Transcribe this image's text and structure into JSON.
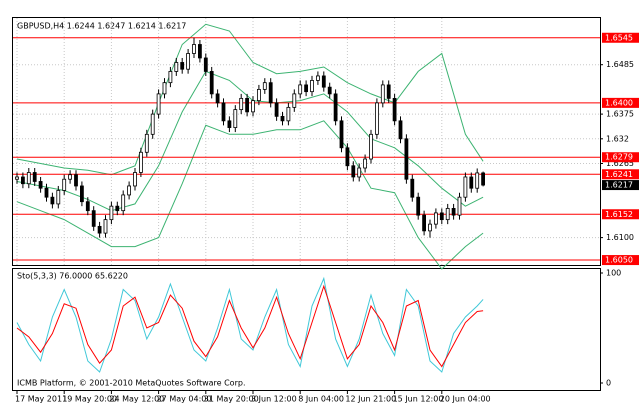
{
  "chart_data": [
    {
      "type": "candlestick",
      "title": "GBPUSD,H4  1.6244 1.6247 1.6214 1.6217",
      "categories": [
        "17 May 2011",
        null,
        null,
        null,
        null,
        null,
        null,
        null,
        "19 May 20:00",
        null,
        null,
        null,
        null,
        null,
        null,
        null,
        "24 May 12:00",
        null,
        null,
        null,
        null,
        null,
        null,
        null,
        "27 May 04:00",
        null,
        null,
        null,
        null,
        null,
        null,
        null,
        "31 May 20:00",
        null,
        null,
        null,
        null,
        null,
        null,
        null,
        "3 Jun 12:00",
        null,
        null,
        null,
        null,
        null,
        null,
        null,
        "8 Jun 04:00",
        null,
        null,
        null,
        null,
        null,
        null,
        null,
        "12 Jun 21:00",
        null,
        null,
        null,
        null,
        null,
        null,
        null,
        "15 Jun 12:00",
        null,
        null,
        null,
        null,
        null,
        null,
        null,
        "20 Jun 04:00",
        null,
        null,
        null,
        null,
        null,
        null,
        null
      ],
      "open": [
        1.623,
        1.6235,
        1.622,
        1.6245,
        1.6225,
        1.621,
        1.619,
        1.6175,
        1.6205,
        1.623,
        1.624,
        1.6215,
        1.618,
        1.616,
        1.6125,
        1.611,
        1.614,
        1.617,
        1.616,
        1.6195,
        1.6215,
        1.6245,
        1.629,
        1.633,
        1.6375,
        1.642,
        1.6445,
        1.647,
        1.649,
        1.6475,
        1.651,
        1.653,
        1.65,
        1.647,
        1.642,
        1.64,
        1.636,
        1.6345,
        1.6385,
        1.641,
        1.638,
        1.6405,
        1.643,
        1.6445,
        1.64,
        1.637,
        1.636,
        1.639,
        1.642,
        1.644,
        1.6425,
        1.645,
        1.646,
        1.6435,
        1.642,
        1.636,
        1.63,
        1.626,
        1.6235,
        1.6255,
        1.6275,
        1.633,
        1.64,
        1.644,
        1.641,
        1.636,
        1.632,
        1.623,
        1.619,
        1.615,
        1.6115,
        1.613,
        1.6155,
        1.614,
        1.6165,
        1.615,
        1.619,
        1.6235,
        1.621,
        1.6244
      ],
      "high": [
        1.6245,
        1.6245,
        1.6255,
        1.6255,
        1.6235,
        1.622,
        1.62,
        1.6215,
        1.624,
        1.625,
        1.625,
        1.6225,
        1.619,
        1.617,
        1.6135,
        1.615,
        1.618,
        1.618,
        1.6205,
        1.6225,
        1.6255,
        1.63,
        1.634,
        1.6385,
        1.643,
        1.6455,
        1.648,
        1.65,
        1.65,
        1.652,
        1.6545,
        1.654,
        1.651,
        1.648,
        1.643,
        1.641,
        1.637,
        1.6395,
        1.642,
        1.642,
        1.6415,
        1.644,
        1.6455,
        1.6455,
        1.641,
        1.638,
        1.64,
        1.643,
        1.645,
        1.645,
        1.646,
        1.647,
        1.647,
        1.6445,
        1.643,
        1.637,
        1.631,
        1.627,
        1.6265,
        1.6285,
        1.634,
        1.641,
        1.645,
        1.645,
        1.642,
        1.637,
        1.633,
        1.624,
        1.62,
        1.616,
        1.614,
        1.6165,
        1.6165,
        1.6175,
        1.6175,
        1.62,
        1.6245,
        1.6245,
        1.6254,
        1.6247
      ],
      "low": [
        1.622,
        1.621,
        1.621,
        1.6215,
        1.62,
        1.618,
        1.6165,
        1.6165,
        1.6195,
        1.622,
        1.6205,
        1.617,
        1.615,
        1.6115,
        1.61,
        1.61,
        1.613,
        1.615,
        1.615,
        1.6185,
        1.6205,
        1.6235,
        1.628,
        1.632,
        1.6365,
        1.641,
        1.6435,
        1.646,
        1.6465,
        1.6465,
        1.65,
        1.649,
        1.646,
        1.641,
        1.639,
        1.635,
        1.6335,
        1.6335,
        1.6375,
        1.637,
        1.637,
        1.6395,
        1.642,
        1.639,
        1.636,
        1.635,
        1.635,
        1.638,
        1.641,
        1.6415,
        1.6415,
        1.644,
        1.6425,
        1.641,
        1.635,
        1.629,
        1.625,
        1.6225,
        1.6225,
        1.6245,
        1.6265,
        1.632,
        1.639,
        1.64,
        1.635,
        1.631,
        1.622,
        1.618,
        1.614,
        1.6105,
        1.61,
        1.612,
        1.613,
        1.613,
        1.614,
        1.614,
        1.618,
        1.62,
        1.62,
        1.6214
      ],
      "close": [
        1.6235,
        1.622,
        1.6245,
        1.6225,
        1.621,
        1.619,
        1.6175,
        1.6205,
        1.623,
        1.624,
        1.6215,
        1.618,
        1.616,
        1.6125,
        1.611,
        1.614,
        1.617,
        1.616,
        1.6195,
        1.6215,
        1.6245,
        1.629,
        1.633,
        1.6375,
        1.642,
        1.6445,
        1.647,
        1.649,
        1.6475,
        1.651,
        1.653,
        1.65,
        1.647,
        1.642,
        1.64,
        1.636,
        1.6345,
        1.6385,
        1.641,
        1.638,
        1.6405,
        1.643,
        1.6445,
        1.64,
        1.637,
        1.636,
        1.639,
        1.642,
        1.644,
        1.6425,
        1.645,
        1.646,
        1.6435,
        1.642,
        1.636,
        1.63,
        1.626,
        1.6235,
        1.6255,
        1.6275,
        1.633,
        1.64,
        1.644,
        1.641,
        1.636,
        1.632,
        1.623,
        1.619,
        1.615,
        1.6115,
        1.613,
        1.6155,
        1.614,
        1.6165,
        1.615,
        1.619,
        1.6235,
        1.621,
        1.6244,
        1.6217
      ],
      "up_color": "#ffffff",
      "down_color": "#000000",
      "bands": {
        "color": "#3cb371",
        "x": [
          0,
          4,
          8,
          12,
          16,
          20,
          24,
          28,
          32,
          36,
          40,
          44,
          48,
          52,
          56,
          60,
          64,
          68,
          72,
          76,
          79
        ],
        "upper": [
          1.6275,
          1.6265,
          1.6255,
          1.625,
          1.624,
          1.626,
          1.64,
          1.653,
          1.6575,
          1.656,
          1.649,
          1.6465,
          1.647,
          1.648,
          1.6445,
          1.642,
          1.64,
          1.647,
          1.651,
          1.633,
          1.627
        ],
        "middle": [
          1.6225,
          1.6215,
          1.6205,
          1.6185,
          1.616,
          1.6175,
          1.626,
          1.638,
          1.647,
          1.645,
          1.6405,
          1.64,
          1.6405,
          1.642,
          1.638,
          1.632,
          1.63,
          1.626,
          1.621,
          1.617,
          1.619
        ],
        "lower": [
          1.618,
          1.616,
          1.614,
          1.611,
          1.608,
          1.608,
          1.61,
          1.622,
          1.635,
          1.633,
          1.633,
          1.634,
          1.634,
          1.636,
          1.63,
          1.621,
          1.62,
          1.61,
          1.603,
          1.608,
          1.611
        ]
      },
      "ylim": [
        1.6039,
        1.6589
      ],
      "yticks": [
        1.6485,
        1.6375,
        1.632,
        1.6265,
        {
          "value": 1.61,
          "label": "1.6100"
        }
      ],
      "levels": [
        1.6545,
        {
          "value": 1.64,
          "label": "1.6400"
        },
        1.6279,
        1.6241,
        1.6152,
        {
          "value": 1.605,
          "label": "1.6050"
        }
      ],
      "level_color": "#ff0000",
      "price": 1.6217,
      "grid": true
    },
    {
      "type": "line",
      "title": "Sto(5,3,3) 76.0000 65.6220",
      "x": [
        0,
        2,
        4,
        6,
        8,
        10,
        12,
        14,
        16,
        18,
        20,
        22,
        24,
        26,
        28,
        30,
        32,
        34,
        36,
        38,
        40,
        42,
        44,
        46,
        48,
        50,
        52,
        54,
        56,
        58,
        60,
        62,
        64,
        66,
        68,
        70,
        72,
        74,
        76,
        78,
        79
      ],
      "series": [
        {
          "color": "#40c8d8",
          "values": [
            55,
            35,
            20,
            60,
            85,
            60,
            20,
            10,
            40,
            85,
            75,
            40,
            60,
            90,
            60,
            30,
            20,
            50,
            85,
            40,
            30,
            60,
            85,
            35,
            15,
            70,
            95,
            40,
            15,
            40,
            80,
            45,
            25,
            85,
            70,
            20,
            10,
            45,
            60,
            70,
            76
          ]
        },
        {
          "color": "#ff0000",
          "values": [
            50,
            42,
            28,
            45,
            72,
            68,
            35,
            18,
            30,
            70,
            78,
            50,
            55,
            80,
            68,
            38,
            24,
            42,
            75,
            50,
            32,
            50,
            78,
            45,
            22,
            55,
            88,
            55,
            22,
            35,
            70,
            55,
            30,
            70,
            75,
            30,
            15,
            35,
            55,
            65,
            65.622
          ]
        }
      ],
      "ylim": [
        0,
        100
      ],
      "yticks": [
        0,
        100
      ],
      "footer": "ICMB Platform, © 2001-2010 MetaQuotes Software Corp."
    }
  ]
}
